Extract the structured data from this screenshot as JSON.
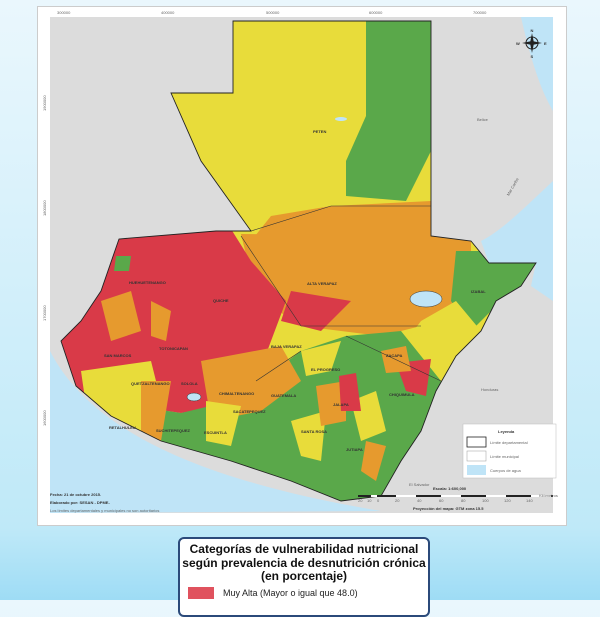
{
  "map": {
    "coord_ticks_x": [
      "300000",
      "400000",
      "500000",
      "600000",
      "700000"
    ],
    "coord_ticks_y": [
      "1900000",
      "1800000",
      "1700000",
      "1600000"
    ],
    "compass": {
      "n": "N",
      "s": "S",
      "e": "E",
      "w": "W"
    },
    "neighbors": [
      "Belice",
      "Mar Caribe",
      "Honduras",
      "El Salvador"
    ],
    "departments": [
      "PETEN",
      "HUEHUETENANGO",
      "QUICHE",
      "ALTA VERAPAZ",
      "IZABAL",
      "BAJA VERAPAZ",
      "EL PROGRESO",
      "ZACAPA",
      "CHIQUIMULA",
      "JALAPA",
      "JUTIAPA",
      "SANTA ROSA",
      "ESCUINTLA",
      "GUATEMALA",
      "SACATEPEQUEZ",
      "CHIMALTENANGO",
      "SOLOLA",
      "TOTONICAPAN",
      "QUETZALTENANGO",
      "SAN MARCOS",
      "RETALHULEU",
      "SUCHITEPEQUEZ"
    ],
    "colors": {
      "muy_alta": "#d93a48",
      "alta": "#e69a2e",
      "moderada": "#e8dc3a",
      "baja": "#5aa84a",
      "water": "#bfe4f7",
      "land_outside": "#dcdcdc"
    },
    "legend": {
      "title": "Leyenda",
      "items": [
        "Límite departamental",
        "Límite municipal",
        "Cuerpos de agua"
      ]
    },
    "scale": {
      "label": "Escala: 1:600,000",
      "ticks": [
        "20",
        "10",
        "0",
        "20",
        "40",
        "60",
        "80",
        "100",
        "120",
        "140"
      ],
      "unit": "Kilómetros"
    },
    "projection": "Proyección del mapa: GTM zona 15.5",
    "date": "Fecha: 21 de octubre 2015.",
    "author": "Elaborado por: SESAN - DPME-",
    "disclaimer": "Los límites departamentales y municipales no son autoritarios"
  },
  "categories": {
    "title": "Categorías de vulnerabilidad nutricional según prevalencia de desnutrición crónica (en porcentaje)",
    "items": [
      {
        "label": "Muy Alta (Mayor o igual que 48.0)",
        "color": "#e0525e"
      }
    ]
  }
}
